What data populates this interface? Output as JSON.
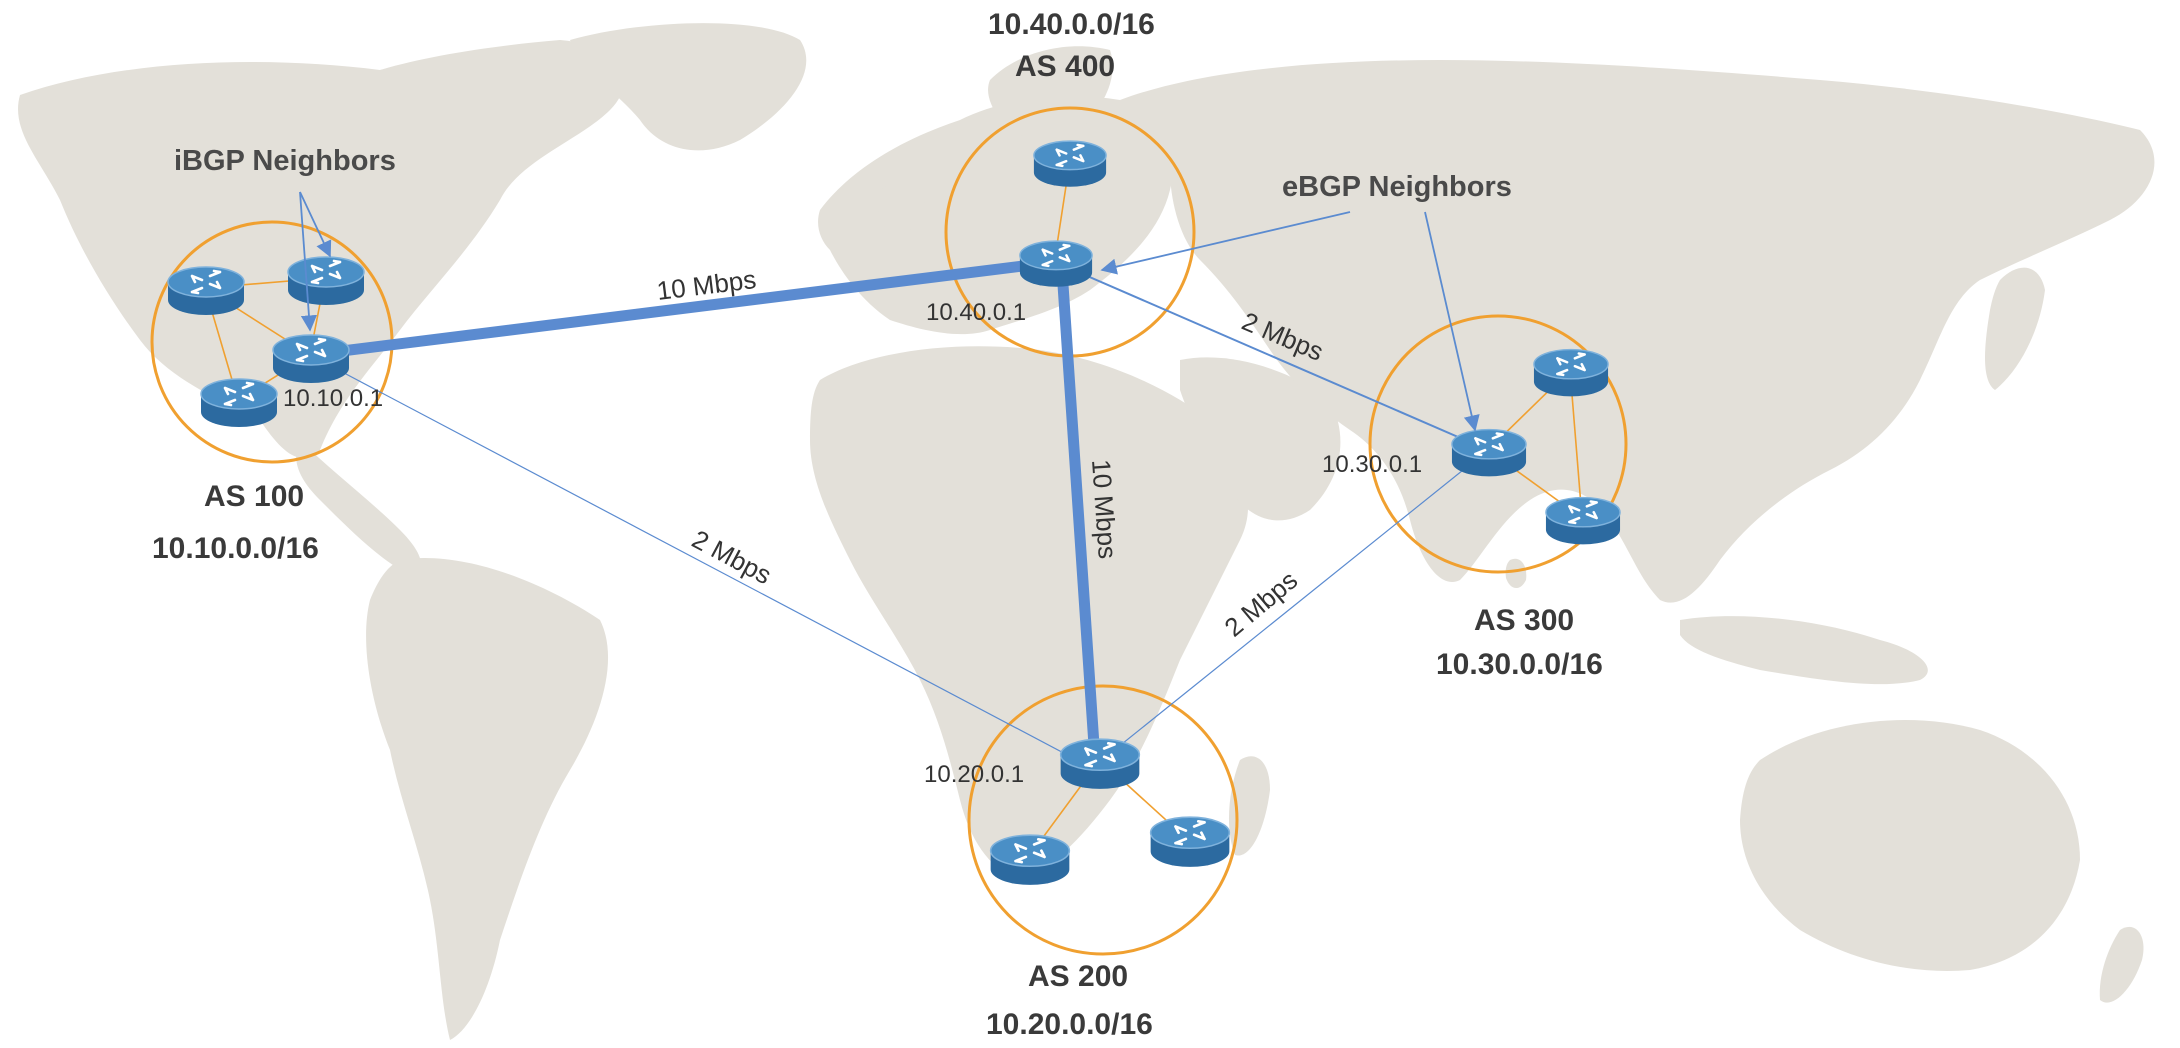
{
  "diagram": {
    "colors": {
      "map": "#e3e0d9",
      "link": "#5b8bd0",
      "as_circle": "#f0a030",
      "router_top": "#4a8fc6",
      "router_side": "#2c6aa0",
      "intra_link": "#f0a030",
      "arrow": "#5b8bd0",
      "text": "#3a3a3a"
    },
    "autonomous_systems": [
      {
        "id": "as100",
        "name": "AS 100",
        "prefix": "10.10.0.0/16",
        "border_ip": "10.10.0.1",
        "router_count": 4
      },
      {
        "id": "as200",
        "name": "AS 200",
        "prefix": "10.20.0.0/16",
        "border_ip": "10.20.0.1",
        "router_count": 3
      },
      {
        "id": "as300",
        "name": "AS 300",
        "prefix": "10.30.0.0/16",
        "border_ip": "10.30.0.1",
        "router_count": 3
      },
      {
        "id": "as400",
        "name": "AS 400",
        "prefix": "10.40.0.0/16",
        "border_ip": "10.40.0.1",
        "router_count": 2
      }
    ],
    "links": [
      {
        "from": "10.10.0.1",
        "to": "10.40.0.1",
        "bandwidth": "10  Mbps",
        "weight": "thick"
      },
      {
        "from": "10.40.0.1",
        "to": "10.20.0.1",
        "bandwidth": "10  Mbps",
        "weight": "thick"
      },
      {
        "from": "10.40.0.1",
        "to": "10.30.0.1",
        "bandwidth": "2  Mbps",
        "weight": "thin"
      },
      {
        "from": "10.10.0.1",
        "to": "10.20.0.1",
        "bandwidth": "2  Mbps",
        "weight": "thin"
      },
      {
        "from": "10.30.0.1",
        "to": "10.20.0.1",
        "bandwidth": "2  Mbps",
        "weight": "thin"
      }
    ],
    "callouts": {
      "ibgp": "iBGP Neighbors",
      "ebgp": "eBGP Neighbors"
    }
  }
}
